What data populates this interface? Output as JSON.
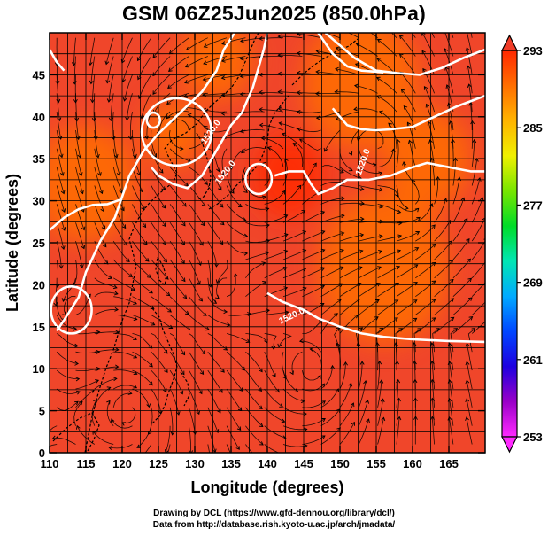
{
  "title": "GSM 06Z25Jun2025 (850.0hPa)",
  "credits": [
    "Drawing by DCL (https://www.gfd-dennou.org/library/dcl/)",
    "Data from http://database.rish.kyoto-u.ac.jp/arch/jmadata/"
  ],
  "map": {
    "type": "heatmap",
    "xlabel": "Longitude (degrees)",
    "ylabel": "Latitude  (degrees)",
    "xlim": [
      110,
      170
    ],
    "ylim": [
      0,
      50
    ],
    "xticks": [
      110,
      115,
      120,
      125,
      130,
      135,
      140,
      145,
      150,
      155,
      160,
      165
    ],
    "yticks": [
      0,
      5,
      10,
      15,
      20,
      25,
      30,
      35,
      40,
      45
    ],
    "grid": true,
    "contour_label": "1520.0",
    "contours": [
      {
        "value": 1520.0,
        "points": [
          [
            111,
            14.5
          ],
          [
            112,
            15.8
          ],
          [
            114,
            18.5
          ],
          [
            115,
            21.5
          ],
          [
            117,
            25.2
          ],
          [
            119,
            28
          ],
          [
            120,
            30.5
          ],
          [
            121,
            33
          ],
          [
            123,
            36
          ],
          [
            125,
            38
          ],
          [
            128,
            40.5
          ],
          [
            131,
            43
          ],
          [
            133,
            45.5
          ],
          [
            134,
            48
          ],
          [
            135.5,
            50
          ]
        ]
      },
      {
        "value": 1520.0,
        "points": [
          [
            110,
            26.5
          ],
          [
            112,
            28
          ],
          [
            114,
            29
          ],
          [
            116,
            29.5
          ],
          [
            118,
            29.6
          ],
          [
            120,
            30.2
          ]
        ]
      },
      {
        "value": 1520.0,
        "points": [
          [
            124,
            34
          ],
          [
            125,
            33
          ],
          [
            127,
            32
          ],
          [
            129,
            31.5
          ],
          [
            131,
            33
          ],
          [
            133,
            36
          ],
          [
            135,
            39
          ],
          [
            136.5,
            40.5
          ],
          [
            138,
            43.5
          ],
          [
            139,
            46.5
          ],
          [
            139.5,
            48
          ],
          [
            140,
            50
          ]
        ]
      },
      {
        "value": 1520.0,
        "points": [
          [
            140,
            19
          ],
          [
            142,
            18
          ],
          [
            145,
            17
          ],
          [
            147,
            16
          ],
          [
            150,
            15
          ],
          [
            153,
            14.2
          ],
          [
            156,
            13.8
          ],
          [
            160,
            13.5
          ],
          [
            165,
            13.3
          ],
          [
            170,
            13.2
          ]
        ]
      },
      {
        "value": 1520.0,
        "points": [
          [
            141,
            33
          ],
          [
            143,
            33.5
          ],
          [
            145,
            33.5
          ],
          [
            146,
            32
          ],
          [
            147,
            30.8
          ],
          [
            149,
            31.5
          ],
          [
            151,
            32.5
          ],
          [
            154,
            32.5
          ],
          [
            157,
            33
          ],
          [
            160,
            34
          ],
          [
            162,
            34.5
          ],
          [
            165,
            34
          ],
          [
            168,
            33.5
          ],
          [
            170,
            33.5
          ]
        ]
      },
      {
        "value": 1520.0,
        "points": [
          [
            148,
            50
          ],
          [
            150,
            48.5
          ],
          [
            152,
            47
          ],
          [
            155,
            45.5
          ],
          [
            158,
            45.2
          ],
          [
            161,
            45
          ],
          [
            164,
            45.8
          ],
          [
            167,
            47
          ],
          [
            170,
            48
          ]
        ]
      },
      {
        "value": 1520.0,
        "points": [
          [
            149,
            41
          ],
          [
            151,
            39
          ],
          [
            153,
            38.5
          ],
          [
            155,
            38.4
          ],
          [
            157,
            38.5
          ],
          [
            160,
            38.8
          ],
          [
            163,
            40
          ],
          [
            166,
            41.2
          ],
          [
            170,
            42.5
          ]
        ]
      },
      {
        "value": 1520.0,
        "points": [
          [
            110,
            48
          ],
          [
            111,
            46.5
          ],
          [
            112,
            45.5
          ]
        ]
      },
      {
        "value": 1520.0,
        "points": [
          [
            147,
            50
          ],
          [
            149,
            47.5
          ],
          [
            151,
            46
          ],
          [
            153,
            45.5
          ],
          [
            156,
            45.3
          ]
        ]
      }
    ],
    "closed_contours": [
      {
        "value": 1520.0,
        "center": [
          127.5,
          38.2
        ],
        "rx_deg": 4.8,
        "ry_deg": 4.0
      },
      {
        "value": 1520.0,
        "center": [
          113.0,
          17.0
        ],
        "rx_deg": 2.8,
        "ry_deg": 2.8
      },
      {
        "value": 1520.0,
        "center": [
          138.8,
          32.6
        ],
        "rx_deg": 1.8,
        "ry_deg": 1.8
      },
      {
        "value": 1520.0,
        "center": [
          124.3,
          39.6
        ],
        "rx_deg": 0.9,
        "ry_deg": 0.9
      }
    ],
    "temperature_regions": [
      {
        "center": [
          127,
          38
        ],
        "r_deg": 4,
        "value": 287
      },
      {
        "center": [
          115,
          32
        ],
        "r_deg": 7,
        "value": 287
      },
      {
        "center": [
          153,
          44
        ],
        "r_deg": 8,
        "value": 286
      },
      {
        "center": [
          162,
          35
        ],
        "r_deg": 6,
        "value": 288
      },
      {
        "center": [
          156,
          22
        ],
        "r_deg": 9,
        "value": 289
      },
      {
        "center": [
          133,
          47
        ],
        "r_deg": 5,
        "value": 289
      },
      {
        "center": [
          143,
          33
        ],
        "r_deg": 5,
        "value": 290
      }
    ]
  },
  "colorbar": {
    "min": 253,
    "max": 293,
    "tick_labels": [
      "293",
      "285",
      "277",
      "269",
      "261",
      "253"
    ],
    "tick_values": [
      293,
      285,
      277,
      269,
      261,
      253
    ],
    "colors": [
      "#ff29ff",
      "#9a00c8",
      "#1e00e0",
      "#0046ff",
      "#00aaff",
      "#00e6b4",
      "#00dc28",
      "#78e600",
      "#f0f000",
      "#ffb400",
      "#ff6e00",
      "#ff2800"
    ]
  }
}
